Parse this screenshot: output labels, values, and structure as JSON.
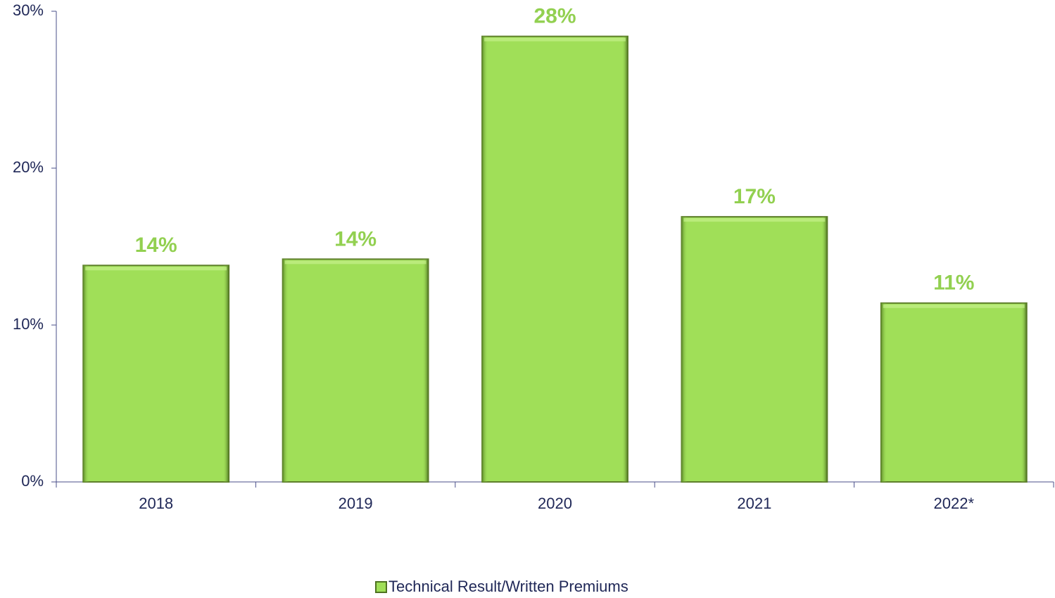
{
  "chart_data": {
    "type": "bar",
    "categories": [
      "2018",
      "2019",
      "2020",
      "2021",
      "2022*"
    ],
    "series": [
      {
        "name": "Technical Result/Written Premiums",
        "color": "#a0df58",
        "values": [
          13.8,
          14.2,
          28.4,
          16.9,
          11.4
        ],
        "value_labels": [
          "14%",
          "14%",
          "28%",
          "17%",
          "11%"
        ]
      }
    ],
    "ylim": [
      0,
      30
    ],
    "yticks": [
      {
        "value": 0,
        "label": "0%"
      },
      {
        "value": 10,
        "label": "10%"
      },
      {
        "value": 20,
        "label": "20%"
      },
      {
        "value": 30,
        "label": "30%"
      }
    ],
    "legend": "bottom"
  }
}
